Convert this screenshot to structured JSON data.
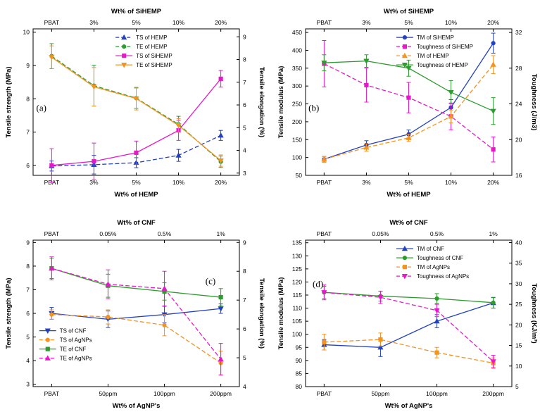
{
  "colors": {
    "blue": "#2341c0",
    "green": "#2e9b2e",
    "magenta": "#e619c9",
    "orange": "#f39322",
    "axis": "#000000",
    "background": "#ffffff"
  },
  "chart_data": [
    {
      "id": "a",
      "type": "line",
      "panel_label": "(a)",
      "axes": {
        "top_title": "Wt% of SiHEMP",
        "bottom_title": "Wt% of HEMP",
        "left_title": "Tensile strength (MPa)",
        "right_title": "Tensile elongation (%)",
        "top_categories": [
          "PBAT",
          "3%",
          "5%",
          "10%",
          "20%"
        ],
        "bottom_categories": [
          "PBAT",
          "3%",
          "5%",
          "10%",
          "20%"
        ],
        "left": {
          "min": 5.7,
          "max": 10.1,
          "ticks": [
            6,
            7,
            8,
            9,
            10
          ]
        },
        "right": {
          "min": 2.9,
          "max": 9.35,
          "ticks": [
            3,
            4,
            5,
            6,
            7,
            8,
            9
          ]
        }
      },
      "legend": {
        "x": 0.4,
        "y": 0.02
      },
      "label_pos": {
        "x": 0.04,
        "y": 0.56
      },
      "series": [
        {
          "name": "TS of HEMP",
          "axis": "left",
          "color": "blue",
          "dash": true,
          "marker": "triangle-up",
          "values": [
            5.98,
            6.02,
            6.08,
            6.3,
            6.9
          ],
          "errors": [
            0.15,
            0.28,
            0.15,
            0.18,
            0.15
          ]
        },
        {
          "name": "TE of HEMP",
          "axis": "right",
          "color": "green",
          "dash": true,
          "marker": "circle",
          "values": [
            8.15,
            6.85,
            6.3,
            5.15,
            3.5
          ],
          "errors": [
            0.55,
            0.9,
            0.45,
            0.35,
            0.25
          ]
        },
        {
          "name": "TS of SiHEMP",
          "axis": "left",
          "color": "magenta",
          "dash": false,
          "marker": "square",
          "values": [
            6.0,
            6.12,
            6.38,
            7.05,
            8.6
          ],
          "errors": [
            0.5,
            0.55,
            0.35,
            0.3,
            0.25
          ]
        },
        {
          "name": "TE of SiHEMP",
          "axis": "right",
          "color": "orange",
          "dash": false,
          "marker": "triangle-down",
          "values": [
            8.1,
            6.8,
            6.28,
            5.1,
            3.55
          ],
          "errors": [
            0.5,
            0.85,
            0.5,
            0.3,
            0.25
          ]
        }
      ]
    },
    {
      "id": "b",
      "type": "line",
      "panel_label": "(b)",
      "axes": {
        "top_title": "Wt% of SiHEMP",
        "bottom_title": "Wt% of HEMP",
        "left_title": "Tensile modulus (MPa)",
        "right_title": "Toughness (J/m3)",
        "top_categories": [
          "PBAT",
          "3%",
          "5%",
          "10%",
          "20%"
        ],
        "bottom_categories": [
          "PBAT",
          "3%",
          "5%",
          "10%",
          "20%"
        ],
        "left": {
          "min": 50,
          "max": 460,
          "ticks": [
            50,
            100,
            150,
            200,
            250,
            300,
            350,
            400,
            450
          ]
        },
        "right": {
          "min": 16,
          "max": 32.4,
          "ticks": [
            16,
            20,
            24,
            28,
            32
          ]
        }
      },
      "legend": {
        "x": 0.44,
        "y": 0.02
      },
      "label_pos": {
        "x": 0.04,
        "y": 0.56
      },
      "series": [
        {
          "name": "TM of SiHEMP",
          "axis": "left",
          "color": "blue",
          "dash": false,
          "marker": "circle",
          "values": [
            95,
            135,
            165,
            240,
            420
          ],
          "errors": [
            8,
            12,
            12,
            22,
            28
          ]
        },
        {
          "name": "Toughness of SiHEMP",
          "axis": "right",
          "color": "magenta",
          "dash": true,
          "marker": "square",
          "values": [
            28.5,
            26.1,
            24.7,
            22.6,
            18.9
          ],
          "errors": [
            2.6,
            1.9,
            1.7,
            1.5,
            1.4
          ]
        },
        {
          "name": "TM of HEMP",
          "axis": "left",
          "color": "orange",
          "dash": true,
          "marker": "triangle-up",
          "values": [
            95,
            128,
            155,
            215,
            360
          ],
          "errors": [
            8,
            10,
            10,
            18,
            25
          ]
        },
        {
          "name": "Toughness of HEMP",
          "axis": "right",
          "color": "green",
          "dash": false,
          "marker": "triangle-down",
          "values": [
            28.6,
            28.8,
            28.0,
            25.3,
            23.2
          ],
          "errors": [
            0.9,
            0.7,
            0.9,
            1.3,
            1.5
          ]
        }
      ]
    },
    {
      "id": "c",
      "type": "line",
      "panel_label": "(c)",
      "axes": {
        "top_title": "Wt% of CNF",
        "bottom_title": "Wt% of AgNP's",
        "left_title": "Tensile strength (MPa)",
        "right_title": "Tensile elongation (%)",
        "top_categories": [
          "PBAT",
          "0.05%",
          "0.5%",
          "1%"
        ],
        "bottom_categories": [
          "PBAT",
          "50ppm",
          "100ppm",
          "200ppm"
        ],
        "left": {
          "min": 2.9,
          "max": 9.1,
          "ticks": [
            3,
            4,
            5,
            6,
            7,
            8,
            9
          ]
        },
        "right": {
          "min": 4,
          "max": 9.08,
          "ticks": [
            4,
            5,
            6,
            7,
            8,
            9
          ]
        }
      },
      "legend": {
        "x": 0.03,
        "y": 0.58
      },
      "label_pos": {
        "x": 0.86,
        "y": 0.3
      },
      "series": [
        {
          "name": "TS of CNF",
          "axis": "left",
          "color": "blue",
          "dash": false,
          "marker": "triangle-down",
          "values": [
            6.0,
            5.75,
            5.95,
            6.2
          ],
          "errors": [
            0.25,
            0.35,
            0.35,
            0.2
          ]
        },
        {
          "name": "TS of AgNPs",
          "axis": "left",
          "color": "orange",
          "dash": true,
          "marker": "circle",
          "values": [
            5.95,
            5.85,
            5.5,
            3.9
          ],
          "errors": [
            0.2,
            0.3,
            0.45,
            0.5
          ]
        },
        {
          "name": "TE of CNF",
          "axis": "right",
          "color": "green",
          "dash": false,
          "marker": "square",
          "values": [
            8.1,
            7.5,
            7.3,
            7.1
          ],
          "errors": [
            0.35,
            0.4,
            0.3,
            0.3
          ]
        },
        {
          "name": "TE of AgNPs",
          "axis": "right",
          "color": "magenta",
          "dash": true,
          "marker": "triangle-up",
          "values": [
            8.1,
            7.55,
            7.4,
            4.95
          ],
          "errors": [
            0.4,
            0.5,
            0.6,
            0.55
          ]
        }
      ]
    },
    {
      "id": "d",
      "type": "line",
      "panel_label": "(d)",
      "axes": {
        "top_title": "Wt% of CNF",
        "bottom_title": "Wt% of AgNP's",
        "left_title": "Tensile modulus (MPa)",
        "right_title": "Toughness (KJ/m³)",
        "top_categories": [
          "PBAT",
          "0.05%",
          "0.5%",
          "1%"
        ],
        "bottom_categories": [
          "PBAT",
          "50ppm",
          "100ppm",
          "200ppm"
        ],
        "left": {
          "min": 80,
          "max": 136,
          "ticks": [
            80,
            85,
            90,
            95,
            100,
            105,
            110,
            115,
            120,
            125,
            130,
            135
          ]
        },
        "right": {
          "min": 5,
          "max": 40.6,
          "ticks": [
            5,
            10,
            15,
            20,
            25,
            30,
            35,
            40
          ]
        }
      },
      "legend": {
        "x": 0.44,
        "y": 0.02
      },
      "label_pos": {
        "x": 0.06,
        "y": 0.32
      },
      "series": [
        {
          "name": "TM of CNF",
          "axis": "left",
          "color": "blue",
          "dash": false,
          "marker": "triangle-up",
          "values": [
            96,
            95,
            105,
            112
          ],
          "errors": [
            2,
            3.5,
            2.5,
            2
          ]
        },
        {
          "name": "Toughness of CNF",
          "axis": "right",
          "color": "green",
          "dash": false,
          "marker": "circle",
          "values": [
            27.9,
            27.0,
            26.4,
            25.4
          ],
          "errors": [
            1.5,
            1.2,
            1.2,
            1.3
          ]
        },
        {
          "name": "TM of AgNPs",
          "axis": "left",
          "color": "orange",
          "dash": true,
          "marker": "square",
          "values": [
            97,
            98,
            93,
            89
          ],
          "errors": [
            3,
            2.5,
            2,
            2
          ]
        },
        {
          "name": "Toughness of AgNPs",
          "axis": "right",
          "color": "magenta",
          "dash": true,
          "marker": "triangle-down",
          "values": [
            27.9,
            26.7,
            23.5,
            11.1
          ],
          "errors": [
            1.8,
            1.5,
            1.5,
            1.5
          ]
        }
      ]
    }
  ]
}
